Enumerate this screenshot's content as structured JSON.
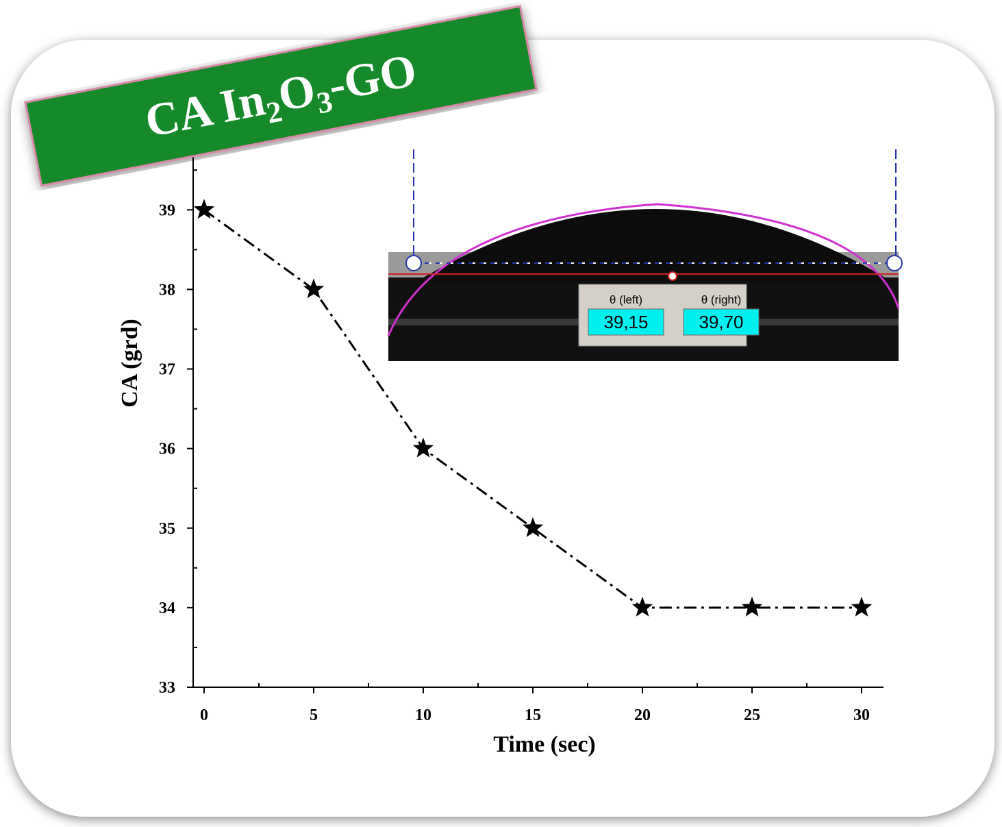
{
  "chart_data": {
    "type": "line",
    "banner": {
      "parts": [
        "CA In",
        "2",
        "O",
        "3",
        "-GO"
      ]
    },
    "x_label": "Time (sec)",
    "y_label": "CA (grd)",
    "x": [
      0,
      5,
      10,
      15,
      20,
      25,
      30
    ],
    "series": [
      {
        "color": "#000000",
        "values": [
          39,
          38,
          36,
          35,
          34,
          34,
          34
        ]
      }
    ],
    "xlim": [
      -0.5,
      31
    ],
    "xticks": [
      0,
      5,
      10,
      15,
      20,
      25,
      30
    ],
    "ylim": [
      33,
      39.7
    ],
    "yticks": [
      33,
      34,
      35,
      36,
      37,
      38,
      39
    ],
    "inset": {
      "left_label": "θ (left)",
      "right_label": "θ (right)",
      "left_value": "39,15",
      "right_value": "39,70"
    }
  }
}
